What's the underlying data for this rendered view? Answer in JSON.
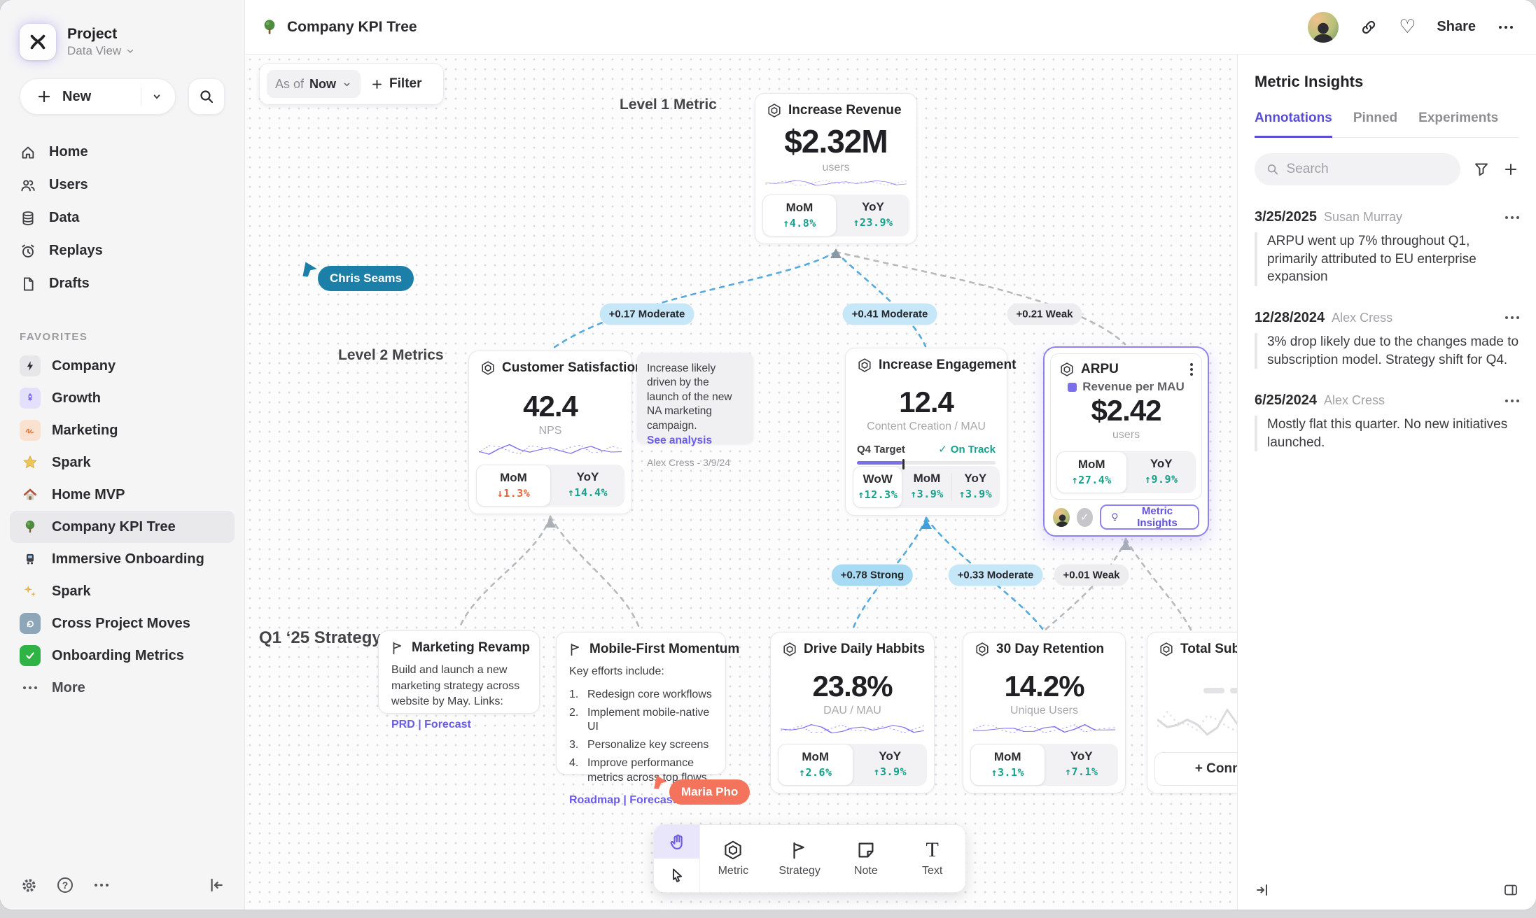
{
  "topbar": {
    "title": "Company KPI Tree",
    "share_label": "Share"
  },
  "sidebar": {
    "project_name": "Project",
    "project_view": "Data View",
    "new_label": "New",
    "nav": [
      {
        "label": "Home"
      },
      {
        "label": "Users"
      },
      {
        "label": "Data"
      },
      {
        "label": "Replays"
      },
      {
        "label": "Drafts"
      }
    ],
    "favorites_heading": "FAVORITES",
    "favorites": [
      {
        "label": "Company"
      },
      {
        "label": "Growth"
      },
      {
        "label": "Marketing"
      },
      {
        "label": "Spark"
      },
      {
        "label": "Home MVP"
      },
      {
        "label": "Company KPI Tree"
      },
      {
        "label": "Immersive Onboarding"
      },
      {
        "label": "Spark"
      },
      {
        "label": "Cross Project Moves"
      },
      {
        "label": "Onboarding Metrics"
      }
    ],
    "more_label": "More"
  },
  "canvas": {
    "asof_label": "As of",
    "asof_value": "Now",
    "filter_label": "Filter",
    "level1_label": "Level 1 Metric",
    "level2_label": "Level 2 Metrics",
    "strategy_row_label": "Q1 ‘25 Strategy",
    "cursors": {
      "a": "Chris Seams",
      "b": "Maria Pho"
    },
    "correlations": [
      {
        "label": "+0.17 Moderate"
      },
      {
        "label": "+0.41 Moderate"
      },
      {
        "label": "+0.21 Weak"
      },
      {
        "label": "+0.78 Strong"
      },
      {
        "label": "+0.33 Moderate"
      },
      {
        "label": "+0.01 Weak"
      }
    ],
    "revenue": {
      "title": "Increase Revenue",
      "value": "$2.32M",
      "unit": "users",
      "stats": [
        {
          "label": "MoM",
          "value": "↑4.8%"
        },
        {
          "label": "YoY",
          "value": "↑23.9%"
        }
      ]
    },
    "satisfaction": {
      "title": "Customer Satisfaction",
      "value": "42.4",
      "unit": "NPS",
      "stats": [
        {
          "label": "MoM",
          "value": "↓1.3%"
        },
        {
          "label": "YoY",
          "value": "↑14.4%"
        }
      ]
    },
    "note": {
      "text": "Increase likely driven by the launch of the new NA marketing campaign.",
      "link_label": "See analysis",
      "author": "Alex Cress - 3/9/24"
    },
    "engagement": {
      "title": "Increase Engagement",
      "value": "12.4",
      "unit": "Content Creation / MAU",
      "target_label": "Q4 Target",
      "status_label": "On Track",
      "progress_pct": 33,
      "stats": [
        {
          "label": "WoW",
          "value": "↑12.3%"
        },
        {
          "label": "MoM",
          "value": "↑3.9%"
        },
        {
          "label": "YoY",
          "value": "↑3.9%"
        }
      ]
    },
    "arpu": {
      "title": "ARPU",
      "legend": "Revenue per MAU",
      "value": "$2.42",
      "unit": "users",
      "insights_label": "Metric Insights",
      "stats": [
        {
          "label": "MoM",
          "value": "↑27.4%"
        },
        {
          "label": "YoY",
          "value": "↑9.9%"
        }
      ]
    },
    "marketing_revamp": {
      "title": "Marketing Revamp",
      "body": "Build and launch a new marketing strategy across website by May. Links:",
      "links_label": "PRD | Forecast"
    },
    "mobile_first": {
      "title": "Mobile-First Momentum",
      "intro": "Key efforts include:",
      "items": [
        {
          "n": "1.",
          "text": "Redesign core workflows"
        },
        {
          "n": "2.",
          "text": "Implement mobile-native UI"
        },
        {
          "n": "3.",
          "text": "Personalize key screens"
        },
        {
          "n": "4.",
          "text": "Improve performance metrics across top flows"
        }
      ],
      "links_label": "Roadmap | Forecast"
    },
    "daily_habits": {
      "title": "Drive Daily Habbits",
      "value": "23.8%",
      "unit": "DAU / MAU",
      "stats": [
        {
          "label": "MoM",
          "value": "↑2.6%"
        },
        {
          "label": "YoY",
          "value": "↑3.9%"
        }
      ]
    },
    "retention": {
      "title": "30 Day Retention",
      "value": "14.2%",
      "unit": "Unique Users",
      "stats": [
        {
          "label": "MoM",
          "value": "↑3.1%"
        },
        {
          "label": "YoY",
          "value": "↑7.1%"
        }
      ]
    },
    "total_subs": {
      "title": "Total Subscript",
      "connect_label": "+ Connect"
    }
  },
  "toolbar": {
    "items": [
      {
        "label": "Metric"
      },
      {
        "label": "Strategy"
      },
      {
        "label": "Note"
      },
      {
        "label": "Text"
      }
    ]
  },
  "panel": {
    "title": "Metric Insights",
    "tabs": [
      {
        "label": "Annotations"
      },
      {
        "label": "Pinned"
      },
      {
        "label": "Experiments"
      }
    ],
    "search_placeholder": "Search",
    "annotations": [
      {
        "date": "3/25/2025",
        "author": "Susan Murray",
        "text": "ARPU went up 7% throughout Q1, primarily attributed to EU enterprise expansion"
      },
      {
        "date": "12/28/2024",
        "author": "Alex Cress",
        "text": "3% drop likely due to the changes made to subscription model. Strategy shift for Q4."
      },
      {
        "date": "6/25/2024",
        "author": "Alex Cress",
        "text": "Mostly flat this quarter. No new initiatives launched."
      }
    ]
  },
  "colors": {
    "accent": "#6558e0",
    "positive": "#17a08b",
    "negative": "#e8643f",
    "connector_blue": "#54aadc",
    "cursor_teal": "#1b7fa8",
    "cursor_coral": "#f3735c"
  }
}
